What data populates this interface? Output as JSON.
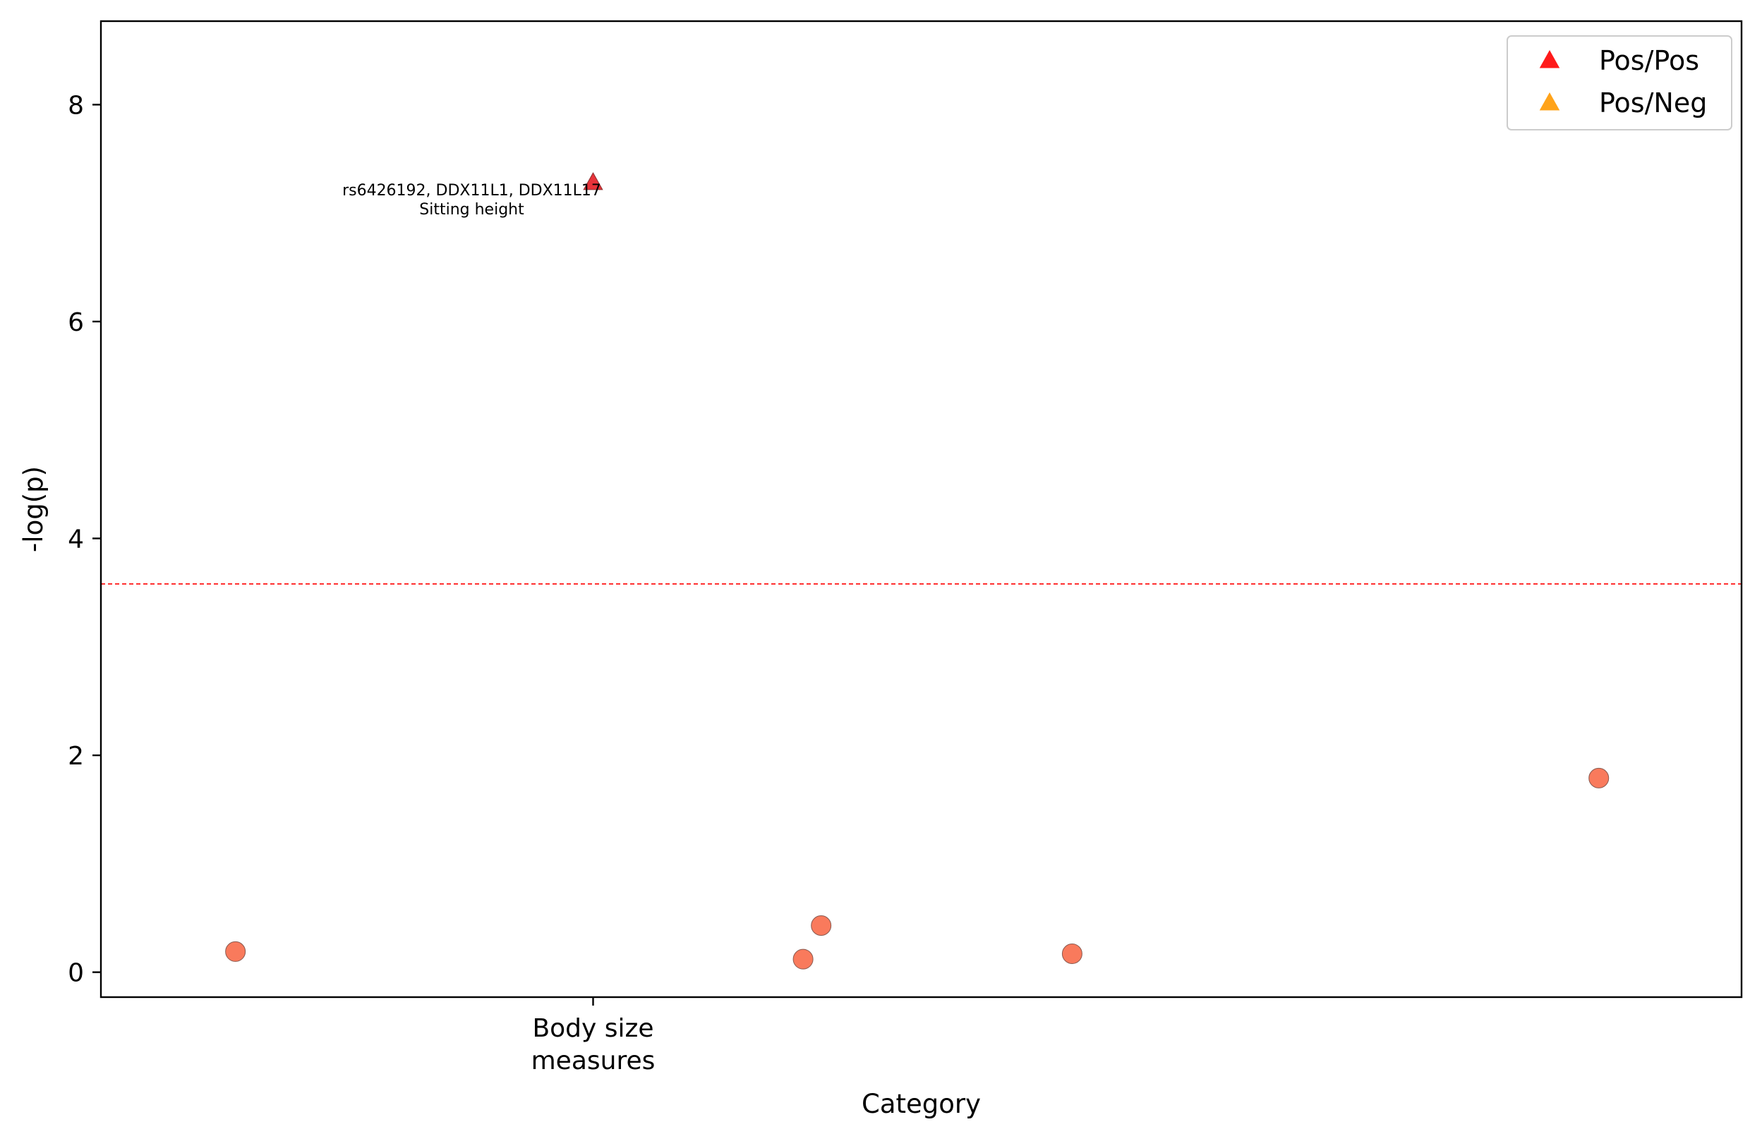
{
  "chart_data": {
    "type": "scatter",
    "xlabel": "Category",
    "ylabel": "-log(p)",
    "ylim": [
      -0.23,
      8.77
    ],
    "yticks": [
      0,
      2,
      4,
      6,
      8
    ],
    "xlim": [
      0,
      100
    ],
    "xticks": [
      {
        "x": 30,
        "label_lines": [
          "Body size",
          "measures"
        ]
      }
    ],
    "threshold": {
      "y": 3.58,
      "color": "#ff0000",
      "style": "dashed"
    },
    "grid": false,
    "legend": {
      "placement": "top-right",
      "entries": [
        {
          "label": "Pos/Pos",
          "marker": "triangle",
          "color": "#ff1a1a"
        },
        {
          "label": "Pos/Neg",
          "marker": "triangle",
          "color": "#ffa31a"
        }
      ]
    },
    "series": [
      {
        "marker": "circle",
        "color": "#f97a5c",
        "points": [
          {
            "x": 8.2,
            "y": 0.19
          },
          {
            "x": 42.8,
            "y": 0.12
          },
          {
            "x": 43.9,
            "y": 0.43
          },
          {
            "x": 59.2,
            "y": 0.17
          },
          {
            "x": 91.3,
            "y": 1.79
          }
        ]
      },
      {
        "marker": "triangle",
        "color": "#e8333a",
        "points": [
          {
            "x": 30,
            "y": 7.28,
            "label_lines": [
              "rs6426192, DDX11L1, DDX11L17",
              "Sitting height"
            ]
          }
        ]
      }
    ]
  }
}
